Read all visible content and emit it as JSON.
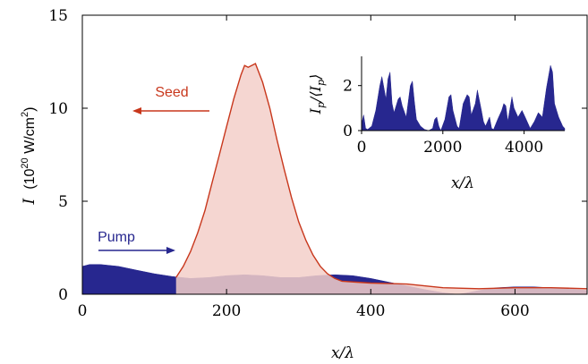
{
  "colors": {
    "pump_fill": "#27278f",
    "seed_line": "#c8371c",
    "seed_fill": "#f3cfc9",
    "axis": "#000000"
  },
  "chart_data": [
    {
      "type": "area",
      "ylabel_prefix": "I",
      "ylabel_unit": "(10",
      "ylabel_exp": "20",
      "ylabel_unit2": " W/cm",
      "ylabel_exp2": "2",
      "ylabel_close": ")",
      "xlabel": "x/λ",
      "xlim": [
        0,
        700
      ],
      "ylim": [
        0,
        15
      ],
      "x_ticks": [
        "0",
        "200",
        "400",
        "600"
      ],
      "y_ticks": [
        "0",
        "5",
        "10",
        "15"
      ],
      "x_tick_values": [
        0,
        200,
        400,
        600
      ],
      "y_tick_values": [
        0,
        5,
        10,
        15
      ],
      "annotations": [
        {
          "text": "Seed",
          "arrow": "left"
        },
        {
          "text": "Pump",
          "arrow": "right"
        }
      ],
      "series": [
        {
          "name": "Pump",
          "x": [
            0,
            10,
            25,
            50,
            75,
            100,
            125,
            150,
            175,
            200,
            225,
            250,
            275,
            300,
            325,
            350,
            375,
            400,
            425,
            450,
            475,
            500,
            520,
            530,
            550,
            575,
            600,
            625,
            650,
            675,
            700
          ],
          "y": [
            1.5,
            1.6,
            1.6,
            1.5,
            1.3,
            1.1,
            0.95,
            0.85,
            0.9,
            1.0,
            1.05,
            1.0,
            0.9,
            0.9,
            1.0,
            1.05,
            1.0,
            0.85,
            0.65,
            0.45,
            0.25,
            0.08,
            0.0,
            0.05,
            0.2,
            0.35,
            0.4,
            0.4,
            0.35,
            0.3,
            0.2
          ]
        },
        {
          "name": "Seed",
          "x": [
            130,
            140,
            150,
            160,
            170,
            180,
            190,
            200,
            210,
            220,
            225,
            230,
            240,
            250,
            260,
            270,
            280,
            290,
            300,
            310,
            320,
            330,
            340,
            350,
            360,
            380,
            400,
            450,
            500,
            550,
            600,
            650,
            700
          ],
          "y": [
            0.9,
            1.5,
            2.3,
            3.3,
            4.5,
            6.0,
            7.5,
            9.0,
            10.5,
            11.8,
            12.3,
            12.2,
            12.4,
            11.4,
            10.0,
            8.3,
            6.7,
            5.2,
            3.9,
            2.9,
            2.1,
            1.5,
            1.1,
            0.85,
            0.7,
            0.65,
            0.6,
            0.55,
            0.35,
            0.3,
            0.35,
            0.35,
            0.3
          ]
        }
      ]
    },
    {
      "type": "area",
      "ylabel": "I_p/⟨I_p⟩",
      "ylabel_main": "I",
      "ylabel_sub": "p",
      "ylabel_mid": "/⟨I",
      "ylabel_sub2": "p",
      "ylabel_end": "⟩",
      "xlabel": "x/λ",
      "xlim": [
        0,
        5000
      ],
      "ylim": [
        0,
        3.3
      ],
      "x_ticks": [
        "0",
        "2000",
        "4000"
      ],
      "y_ticks": [
        "0",
        "2"
      ],
      "x_tick_values": [
        0,
        2000,
        4000
      ],
      "y_tick_values": [
        0,
        2
      ],
      "series": [
        {
          "name": "",
          "x": [
            0,
            50,
            100,
            150,
            250,
            350,
            450,
            500,
            550,
            600,
            650,
            700,
            750,
            800,
            900,
            950,
            1000,
            1100,
            1200,
            1250,
            1300,
            1350,
            1450,
            1550,
            1650,
            1750,
            1800,
            1850,
            1900,
            1950,
            2050,
            2150,
            2200,
            2250,
            2350,
            2400,
            2500,
            2600,
            2650,
            2700,
            2800,
            2850,
            2950,
            3000,
            3050,
            3150,
            3200,
            3250,
            3350,
            3450,
            3500,
            3550,
            3600,
            3700,
            3750,
            3850,
            3950,
            4050,
            4150,
            4250,
            4350,
            4450,
            4550,
            4650,
            4700,
            4750,
            4800,
            4850,
            4950,
            5000
          ],
          "y": [
            0.3,
            0.7,
            0.1,
            0.05,
            0.2,
            0.9,
            2.0,
            2.4,
            1.9,
            1.4,
            2.3,
            2.6,
            1.2,
            0.8,
            1.4,
            1.5,
            1.1,
            0.6,
            2.0,
            2.2,
            1.3,
            0.5,
            0.2,
            0.05,
            0.0,
            0.1,
            0.5,
            0.6,
            0.2,
            0.0,
            0.5,
            1.5,
            1.6,
            0.9,
            0.2,
            0.1,
            1.2,
            1.6,
            1.5,
            0.7,
            1.2,
            1.8,
            0.9,
            0.4,
            0.2,
            0.6,
            0.1,
            0.05,
            0.5,
            0.9,
            1.2,
            1.1,
            0.4,
            1.5,
            1.0,
            0.6,
            0.9,
            0.5,
            0.1,
            0.4,
            0.8,
            0.6,
            1.9,
            2.9,
            2.6,
            1.2,
            0.9,
            0.6,
            0.2,
            0.1
          ]
        }
      ]
    }
  ]
}
